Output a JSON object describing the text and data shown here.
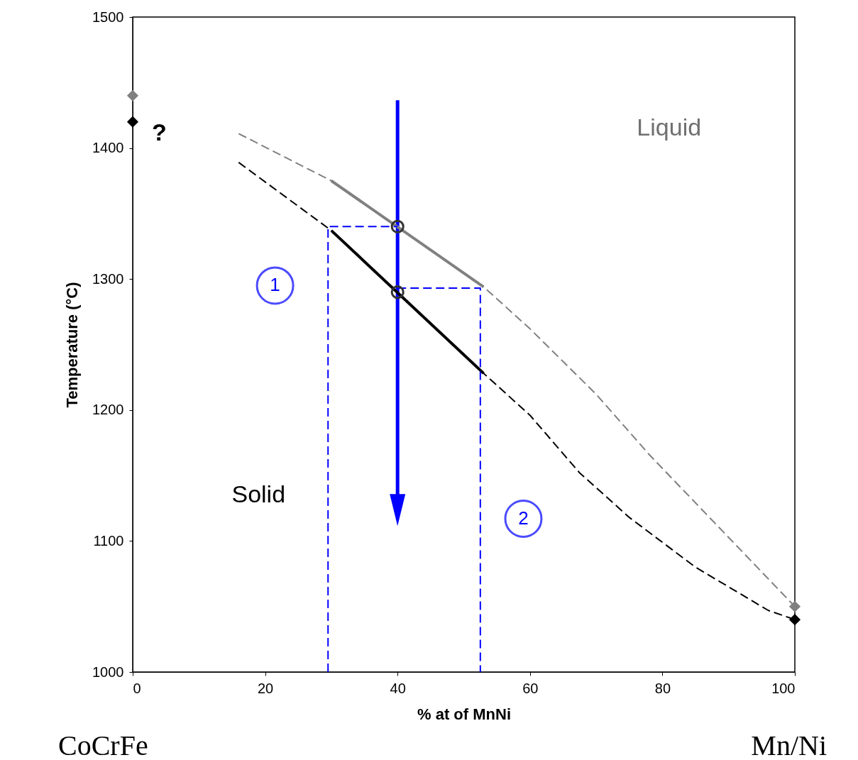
{
  "chart_data": {
    "type": "line",
    "xlabel": "% at  of MnNi",
    "ylabel": "Temperature (°C)",
    "xlim": [
      0,
      100
    ],
    "ylim": [
      1000,
      1500
    ],
    "xticks": [
      0,
      20,
      40,
      60,
      80,
      100
    ],
    "yticks": [
      1000,
      1100,
      1200,
      1300,
      1400,
      1500
    ],
    "grid": false,
    "series": [
      {
        "type": "line",
        "color": "#808080",
        "line_style": "dashed",
        "x": [
          16,
          30,
          53,
          60,
          70,
          78,
          89,
          100
        ],
        "values": [
          1411,
          1375,
          1294,
          1262,
          1212,
          1166,
          1108,
          1050
        ]
      },
      {
        "type": "line",
        "color": "#000000",
        "line_style": "dashed",
        "x": [
          16,
          30,
          40,
          53,
          60,
          67.5,
          75,
          85,
          96,
          100
        ],
        "values": [
          1389,
          1337,
          1290,
          1228,
          1196,
          1152,
          1118,
          1080,
          1047,
          1040
        ]
      },
      {
        "type": "line",
        "color": "#808080",
        "line_style": "solid",
        "x": [
          30,
          53
        ],
        "values": [
          1375,
          1294
        ]
      },
      {
        "type": "line",
        "color": "#000000",
        "line_style": "solid",
        "x": [
          30,
          53
        ],
        "values": [
          1337,
          1228
        ]
      },
      {
        "type": "line",
        "color": "#0000ff",
        "line_style": "dashed",
        "x": [
          29.5,
          29.5,
          40
        ],
        "values": [
          1000,
          1340,
          1340
        ]
      },
      {
        "type": "line",
        "color": "#0000ff",
        "line_style": "dashed",
        "x": [
          40,
          52.5,
          52.5
        ],
        "values": [
          1293,
          1293,
          1000
        ]
      },
      {
        "type": "scatter",
        "color": "#333333",
        "marker": "circle",
        "x": [
          40,
          40
        ],
        "values": [
          1340,
          1290
        ]
      },
      {
        "type": "scatter",
        "color": "#808080",
        "marker": "diamond",
        "x": [
          0,
          100
        ],
        "values": [
          1440,
          1050
        ]
      },
      {
        "type": "scatter",
        "color": "#000000",
        "marker": "diamond",
        "x": [
          0,
          100
        ],
        "values": [
          1420,
          1040
        ]
      }
    ],
    "annotations": [
      "Liquid",
      "Solid",
      "?",
      "1",
      "2",
      "CoCrFe",
      "Mn/Ni"
    ]
  }
}
